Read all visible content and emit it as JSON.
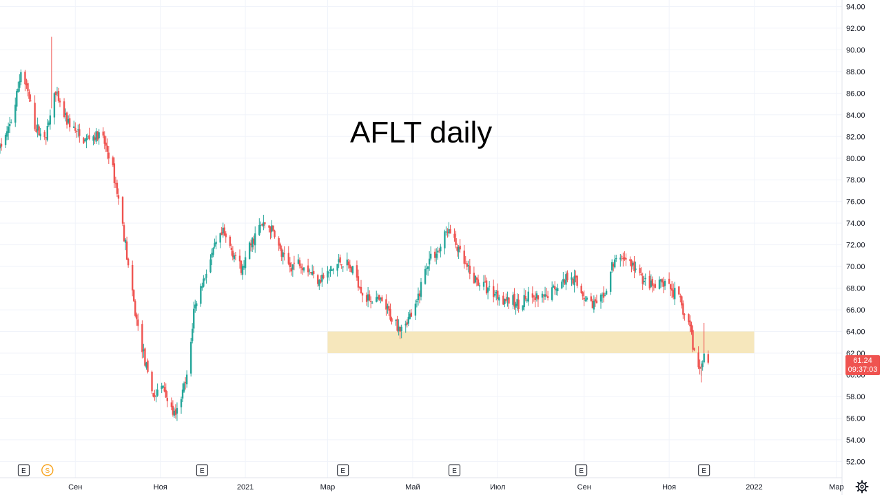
{
  "chart_title": "AFLT daily",
  "price_badge": {
    "price": "61.24",
    "countdown": "09:37:03",
    "color": "#ef5350"
  },
  "colors": {
    "up": "#26a69a",
    "down": "#ef5350",
    "zone": "#f5e6b8",
    "grid": "#f0f3fa"
  },
  "icons": {
    "settings": "gear-icon"
  },
  "chart_data": {
    "type": "candlestick",
    "title": "AFLT daily",
    "ylim": [
      50.5,
      94.6
    ],
    "y_ticks": [
      52,
      54,
      56,
      58,
      60,
      62,
      64,
      66,
      68,
      70,
      72,
      74,
      76,
      78,
      80,
      82,
      84,
      86,
      88,
      90,
      92,
      94
    ],
    "x_ticks": [
      {
        "label": "Сен",
        "date": "2020-09-01"
      },
      {
        "label": "Ноя",
        "date": "2020-11-01"
      },
      {
        "label": "2021",
        "date": "2021-01-01"
      },
      {
        "label": "Мар",
        "date": "2021-03-01"
      },
      {
        "label": "Май",
        "date": "2021-05-01"
      },
      {
        "label": "Июл",
        "date": "2021-07-01"
      },
      {
        "label": "Сен",
        "date": "2021-09-01"
      },
      {
        "label": "Ноя",
        "date": "2021-11-01"
      },
      {
        "label": "2022",
        "date": "2022-01-01"
      },
      {
        "label": "Мар",
        "date": "2022-03-01"
      }
    ],
    "x_range": [
      "2020-07-09",
      "2022-03-05"
    ],
    "support_zone": {
      "y_low": 62.0,
      "y_high": 64.0,
      "x_start": "2021-03-01",
      "x_end": "2022-01-01"
    },
    "events": [
      {
        "letter": "E",
        "date": "2020-07-26"
      },
      {
        "letter": "S",
        "date": "2020-08-12"
      },
      {
        "letter": "E",
        "date": "2020-12-01"
      },
      {
        "letter": "E",
        "date": "2021-03-12"
      },
      {
        "letter": "E",
        "date": "2021-05-31"
      },
      {
        "letter": "E",
        "date": "2021-08-30"
      },
      {
        "letter": "E",
        "date": "2021-11-26"
      }
    ],
    "price_path": [
      [
        "2020-07-09",
        81
      ],
      [
        "2020-07-15",
        82.5
      ],
      [
        "2020-07-20",
        85
      ],
      [
        "2020-07-24",
        88
      ],
      [
        "2020-07-29",
        86
      ],
      [
        "2020-08-03",
        83
      ],
      [
        "2020-08-08",
        82
      ],
      [
        "2020-08-12",
        82.5
      ],
      [
        "2020-08-17",
        86
      ],
      [
        "2020-08-22",
        84.5
      ],
      [
        "2020-08-26",
        83.5
      ],
      [
        "2020-09-01",
        82.5
      ],
      [
        "2020-09-06",
        81.5
      ],
      [
        "2020-09-12",
        82
      ],
      [
        "2020-09-20",
        82
      ],
      [
        "2020-09-26",
        80
      ],
      [
        "2020-10-01",
        77
      ],
      [
        "2020-10-06",
        73
      ],
      [
        "2020-10-11",
        68
      ],
      [
        "2020-10-15",
        65
      ],
      [
        "2020-10-20",
        62
      ],
      [
        "2020-10-24",
        59
      ],
      [
        "2020-10-28",
        58
      ],
      [
        "2020-11-03",
        59
      ],
      [
        "2020-11-08",
        57
      ],
      [
        "2020-11-12",
        56
      ],
      [
        "2020-11-16",
        58
      ],
      [
        "2020-11-21",
        60
      ],
      [
        "2020-11-25",
        66
      ],
      [
        "2020-11-30",
        68
      ],
      [
        "2020-12-05",
        70
      ],
      [
        "2020-12-11",
        72
      ],
      [
        "2020-12-16",
        73
      ],
      [
        "2020-12-20",
        72
      ],
      [
        "2020-12-25",
        71
      ],
      [
        "2020-12-29",
        69.5
      ],
      [
        "2021-01-05",
        72
      ],
      [
        "2021-01-10",
        73.5
      ],
      [
        "2021-01-16",
        74
      ],
      [
        "2021-01-22",
        73
      ],
      [
        "2021-01-27",
        71
      ],
      [
        "2021-02-02",
        70
      ],
      [
        "2021-02-08",
        70.5
      ],
      [
        "2021-02-14",
        70
      ],
      [
        "2021-02-20",
        69
      ],
      [
        "2021-02-26",
        69
      ],
      [
        "2021-03-03",
        69.5
      ],
      [
        "2021-03-10",
        70.5
      ],
      [
        "2021-03-16",
        70
      ],
      [
        "2021-03-22",
        69
      ],
      [
        "2021-03-28",
        67
      ],
      [
        "2021-04-03",
        67
      ],
      [
        "2021-04-10",
        66.5
      ],
      [
        "2021-04-17",
        65
      ],
      [
        "2021-04-22",
        64.5
      ],
      [
        "2021-04-27",
        65
      ],
      [
        "2021-05-03",
        66
      ],
      [
        "2021-05-08",
        69
      ],
      [
        "2021-05-14",
        71
      ],
      [
        "2021-05-20",
        71.5
      ],
      [
        "2021-05-26",
        73.5
      ],
      [
        "2021-06-01",
        72
      ],
      [
        "2021-06-06",
        70.5
      ],
      [
        "2021-06-12",
        69
      ],
      [
        "2021-06-18",
        68.5
      ],
      [
        "2021-06-24",
        68
      ],
      [
        "2021-06-30",
        67.5
      ],
      [
        "2021-07-07",
        67
      ],
      [
        "2021-07-14",
        66.5
      ],
      [
        "2021-07-20",
        67
      ],
      [
        "2021-07-28",
        67
      ],
      [
        "2021-08-04",
        67
      ],
      [
        "2021-08-10",
        68
      ],
      [
        "2021-08-16",
        68.5
      ],
      [
        "2021-08-22",
        69.5
      ],
      [
        "2021-08-28",
        68
      ],
      [
        "2021-09-03",
        67
      ],
      [
        "2021-09-09",
        66.5
      ],
      [
        "2021-09-15",
        67
      ],
      [
        "2021-09-21",
        70
      ],
      [
        "2021-09-27",
        71
      ],
      [
        "2021-10-03",
        70.5
      ],
      [
        "2021-10-09",
        69.5
      ],
      [
        "2021-10-15",
        68.5
      ],
      [
        "2021-10-21",
        68
      ],
      [
        "2021-10-27",
        68.5
      ],
      [
        "2021-11-02",
        68
      ],
      [
        "2021-11-08",
        67
      ],
      [
        "2021-11-12",
        65.5
      ],
      [
        "2021-11-16",
        64.5
      ],
      [
        "2021-11-19",
        62
      ],
      [
        "2021-11-23",
        60.5
      ],
      [
        "2021-11-26",
        62
      ],
      [
        "2021-11-29",
        61.24
      ]
    ]
  }
}
